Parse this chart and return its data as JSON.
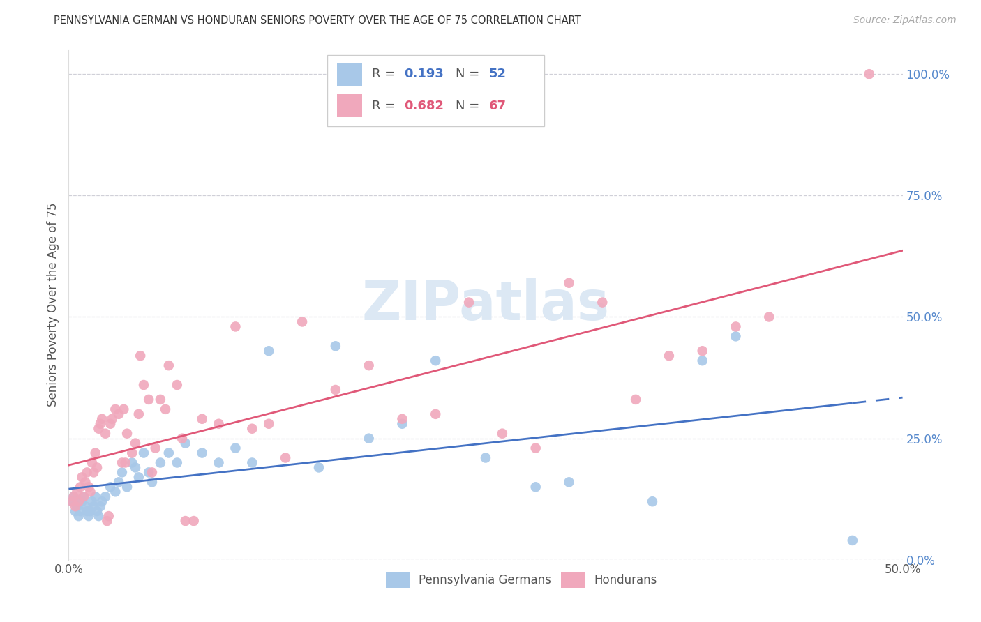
{
  "title": "PENNSYLVANIA GERMAN VS HONDURAN SENIORS POVERTY OVER THE AGE OF 75 CORRELATION CHART",
  "source": "Source: ZipAtlas.com",
  "ylabel": "Seniors Poverty Over the Age of 75",
  "blue_label": "Pennsylvania Germans",
  "pink_label": "Hondurans",
  "blue_R": "0.193",
  "blue_N": "52",
  "pink_R": "0.682",
  "pink_N": "67",
  "blue_color": "#a8c8e8",
  "pink_color": "#f0a8bc",
  "blue_line_color": "#4472c4",
  "pink_line_color": "#e05878",
  "background_color": "#ffffff",
  "grid_color": "#d0d0d8",
  "right_tick_color": "#5588cc",
  "title_color": "#333333",
  "watermark_color": "#dce8f4",
  "xlim": [
    0.0,
    0.5
  ],
  "ylim": [
    0.0,
    1.05
  ],
  "blue_scatter": [
    [
      0.002,
      0.12
    ],
    [
      0.003,
      0.13
    ],
    [
      0.004,
      0.1
    ],
    [
      0.005,
      0.11
    ],
    [
      0.006,
      0.09
    ],
    [
      0.007,
      0.1
    ],
    [
      0.008,
      0.12
    ],
    [
      0.009,
      0.13
    ],
    [
      0.01,
      0.11
    ],
    [
      0.011,
      0.1
    ],
    [
      0.012,
      0.09
    ],
    [
      0.013,
      0.1
    ],
    [
      0.014,
      0.12
    ],
    [
      0.015,
      0.11
    ],
    [
      0.016,
      0.13
    ],
    [
      0.017,
      0.1
    ],
    [
      0.018,
      0.09
    ],
    [
      0.019,
      0.11
    ],
    [
      0.02,
      0.12
    ],
    [
      0.022,
      0.13
    ],
    [
      0.025,
      0.15
    ],
    [
      0.028,
      0.14
    ],
    [
      0.03,
      0.16
    ],
    [
      0.032,
      0.18
    ],
    [
      0.035,
      0.15
    ],
    [
      0.038,
      0.2
    ],
    [
      0.04,
      0.19
    ],
    [
      0.042,
      0.17
    ],
    [
      0.045,
      0.22
    ],
    [
      0.048,
      0.18
    ],
    [
      0.05,
      0.16
    ],
    [
      0.055,
      0.2
    ],
    [
      0.06,
      0.22
    ],
    [
      0.065,
      0.2
    ],
    [
      0.07,
      0.24
    ],
    [
      0.08,
      0.22
    ],
    [
      0.09,
      0.2
    ],
    [
      0.1,
      0.23
    ],
    [
      0.11,
      0.2
    ],
    [
      0.12,
      0.43
    ],
    [
      0.15,
      0.19
    ],
    [
      0.16,
      0.44
    ],
    [
      0.18,
      0.25
    ],
    [
      0.2,
      0.28
    ],
    [
      0.22,
      0.41
    ],
    [
      0.25,
      0.21
    ],
    [
      0.28,
      0.15
    ],
    [
      0.3,
      0.16
    ],
    [
      0.35,
      0.12
    ],
    [
      0.38,
      0.41
    ],
    [
      0.4,
      0.46
    ],
    [
      0.47,
      0.04
    ]
  ],
  "pink_scatter": [
    [
      0.002,
      0.12
    ],
    [
      0.003,
      0.13
    ],
    [
      0.004,
      0.11
    ],
    [
      0.005,
      0.14
    ],
    [
      0.006,
      0.12
    ],
    [
      0.007,
      0.15
    ],
    [
      0.008,
      0.17
    ],
    [
      0.009,
      0.13
    ],
    [
      0.01,
      0.16
    ],
    [
      0.011,
      0.18
    ],
    [
      0.012,
      0.15
    ],
    [
      0.013,
      0.14
    ],
    [
      0.014,
      0.2
    ],
    [
      0.015,
      0.18
    ],
    [
      0.016,
      0.22
    ],
    [
      0.017,
      0.19
    ],
    [
      0.018,
      0.27
    ],
    [
      0.019,
      0.28
    ],
    [
      0.02,
      0.29
    ],
    [
      0.022,
      0.26
    ],
    [
      0.023,
      0.08
    ],
    [
      0.024,
      0.09
    ],
    [
      0.025,
      0.28
    ],
    [
      0.026,
      0.29
    ],
    [
      0.028,
      0.31
    ],
    [
      0.03,
      0.3
    ],
    [
      0.032,
      0.2
    ],
    [
      0.033,
      0.31
    ],
    [
      0.034,
      0.2
    ],
    [
      0.035,
      0.26
    ],
    [
      0.038,
      0.22
    ],
    [
      0.04,
      0.24
    ],
    [
      0.042,
      0.3
    ],
    [
      0.043,
      0.42
    ],
    [
      0.045,
      0.36
    ],
    [
      0.048,
      0.33
    ],
    [
      0.05,
      0.18
    ],
    [
      0.052,
      0.23
    ],
    [
      0.055,
      0.33
    ],
    [
      0.058,
      0.31
    ],
    [
      0.06,
      0.4
    ],
    [
      0.065,
      0.36
    ],
    [
      0.068,
      0.25
    ],
    [
      0.07,
      0.08
    ],
    [
      0.075,
      0.08
    ],
    [
      0.08,
      0.29
    ],
    [
      0.09,
      0.28
    ],
    [
      0.1,
      0.48
    ],
    [
      0.11,
      0.27
    ],
    [
      0.12,
      0.28
    ],
    [
      0.13,
      0.21
    ],
    [
      0.14,
      0.49
    ],
    [
      0.16,
      0.35
    ],
    [
      0.18,
      0.4
    ],
    [
      0.2,
      0.29
    ],
    [
      0.22,
      0.3
    ],
    [
      0.24,
      0.53
    ],
    [
      0.26,
      0.26
    ],
    [
      0.28,
      0.23
    ],
    [
      0.3,
      0.57
    ],
    [
      0.32,
      0.53
    ],
    [
      0.34,
      0.33
    ],
    [
      0.36,
      0.42
    ],
    [
      0.38,
      0.43
    ],
    [
      0.4,
      0.48
    ],
    [
      0.42,
      0.5
    ],
    [
      0.48,
      1.0
    ]
  ]
}
